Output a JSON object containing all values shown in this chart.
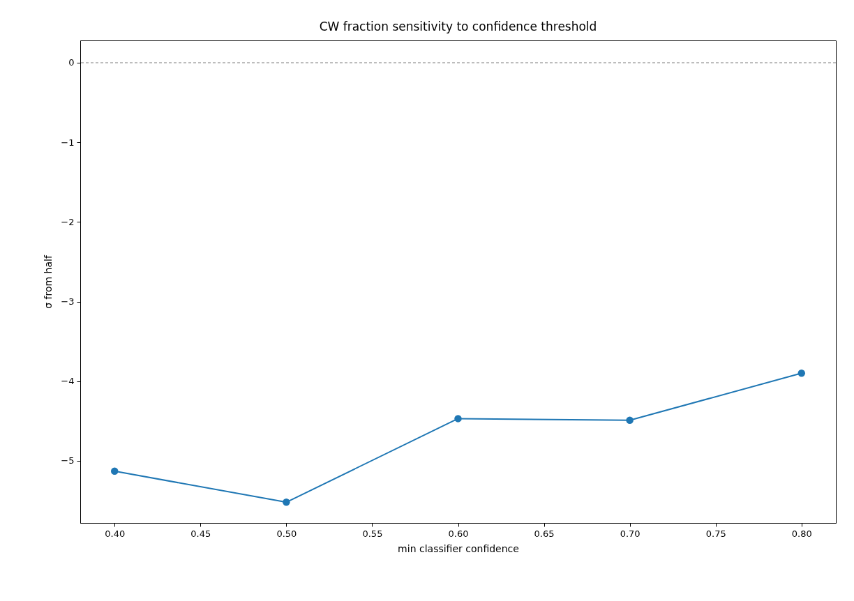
{
  "chart_data": {
    "type": "line",
    "title": "CW fraction sensitivity to confidence threshold",
    "xlabel": "min classifier confidence",
    "ylabel": "σ from half",
    "x": [
      0.4,
      0.5,
      0.6,
      0.7,
      0.8
    ],
    "series": [
      {
        "color": "#1f77b4",
        "values": [
          -5.13,
          -5.52,
          -4.47,
          -4.49,
          -3.9
        ]
      }
    ],
    "marker": "circle",
    "line_style": "solid",
    "grid": false,
    "xlim": [
      0.38,
      0.82
    ],
    "ylim": [
      -5.78,
      0.28
    ],
    "xticks": [
      {
        "value": 0.4,
        "label": "0.40"
      },
      {
        "value": 0.45,
        "label": "0.45"
      },
      {
        "value": 0.5,
        "label": "0.50"
      },
      {
        "value": 0.55,
        "label": "0.55"
      },
      {
        "value": 0.6,
        "label": "0.60"
      },
      {
        "value": 0.65,
        "label": "0.65"
      },
      {
        "value": 0.7,
        "label": "0.70"
      },
      {
        "value": 0.75,
        "label": "0.75"
      },
      {
        "value": 0.8,
        "label": "0.80"
      }
    ],
    "yticks": [
      -5,
      -4,
      -3,
      -2,
      -1,
      0
    ],
    "ref_lines": [
      {
        "axis": "y",
        "value": 0,
        "color": "#808080",
        "line_style": "dashed"
      }
    ]
  }
}
